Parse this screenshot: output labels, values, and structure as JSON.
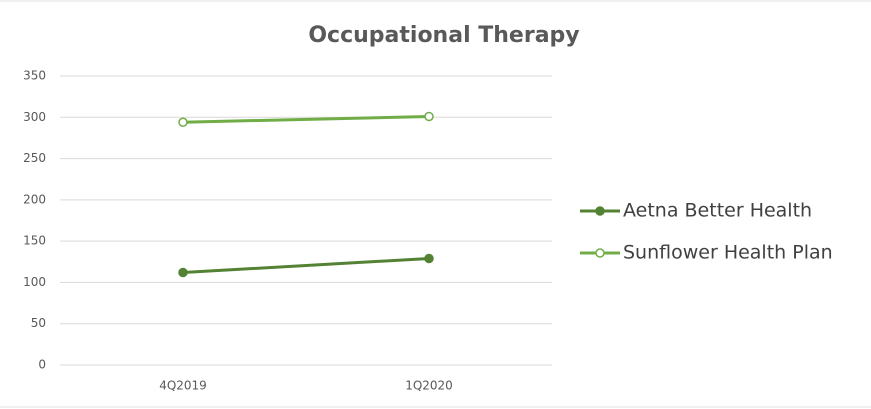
{
  "chart_data": {
    "type": "line",
    "title": "Occupational Therapy",
    "categories": [
      "4Q2019",
      "1Q2020"
    ],
    "series": [
      {
        "name": "Aetna Better Health",
        "color": "#548235",
        "marker_fill": "#548235",
        "values": [
          112,
          129
        ]
      },
      {
        "name": "Sunflower Health Plan",
        "color": "#70ad47",
        "marker_fill": "#ffffff",
        "values": [
          294,
          301
        ]
      }
    ],
    "ylim": [
      0,
      350
    ],
    "yticks": [
      0,
      50,
      100,
      150,
      200,
      250,
      300,
      350
    ],
    "grid": true,
    "legend": "right"
  }
}
